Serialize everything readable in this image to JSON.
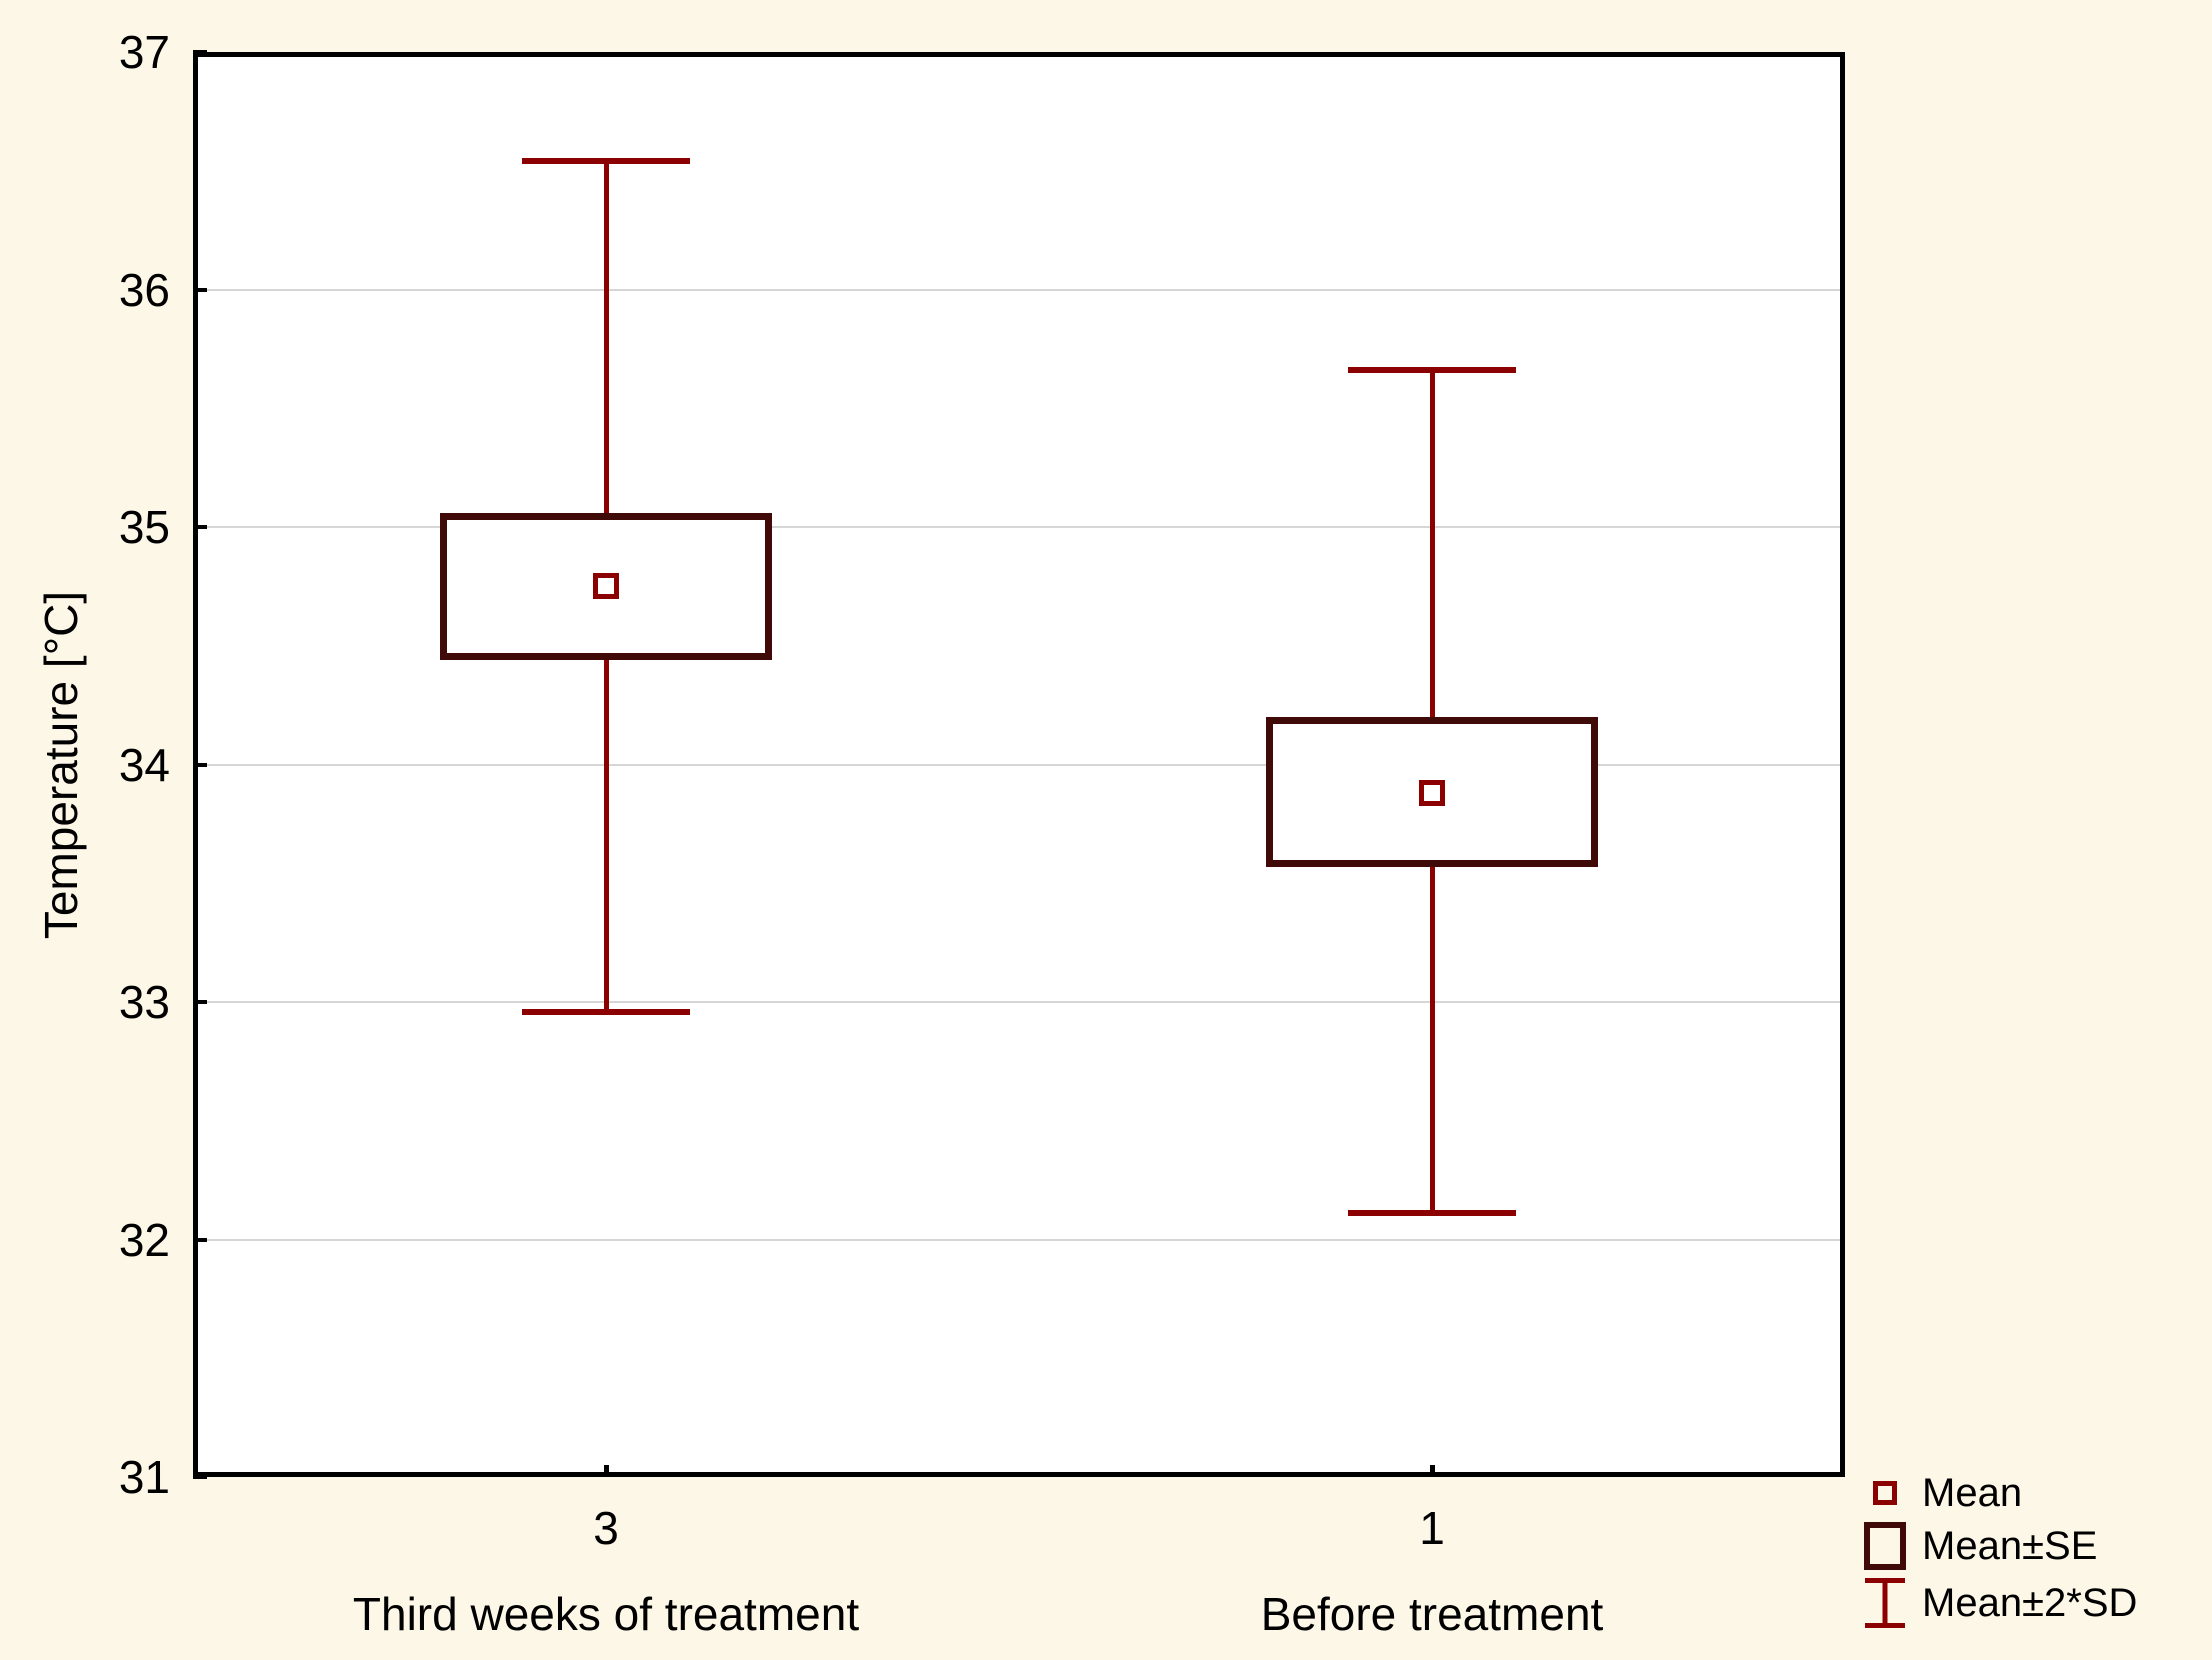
{
  "figure": {
    "background": "#FDF7E8",
    "plot_background": "#FFFFFF"
  },
  "chart_data": {
    "type": "box",
    "title": "",
    "xlabel": "",
    "ylabel": "Temperature [°C]",
    "ylim": [
      31,
      37
    ],
    "yticks": [
      37,
      36,
      35,
      34,
      33,
      32,
      31
    ],
    "gridlines_at": [
      36,
      35,
      34,
      33,
      32
    ],
    "grid": "horizontal",
    "legend_position": "bottom-right-outside",
    "categories": [
      {
        "tick": "3",
        "label": "Third weeks of treatment",
        "mean": 34.75,
        "mean_plus_se": 35.06,
        "mean_minus_se": 34.44,
        "mean_plus_2sd": 36.54,
        "mean_minus_2sd": 32.96
      },
      {
        "tick": "1",
        "label": "Before treatment",
        "mean": 33.88,
        "mean_plus_se": 34.2,
        "mean_minus_se": 33.57,
        "mean_plus_2sd": 35.66,
        "mean_minus_2sd": 32.11
      }
    ],
    "legend": [
      {
        "marker": "mean-point",
        "label": "Mean"
      },
      {
        "marker": "se-box",
        "label": "Mean±SE"
      },
      {
        "marker": "sd-whisker",
        "label": "Mean±2*SD"
      }
    ],
    "colors": {
      "whisker": "#8B0000",
      "mean_marker": "#8B0000",
      "box": "#400A08",
      "grid": "#D6D6D6",
      "axis": "#000000",
      "text": "#000000"
    }
  }
}
